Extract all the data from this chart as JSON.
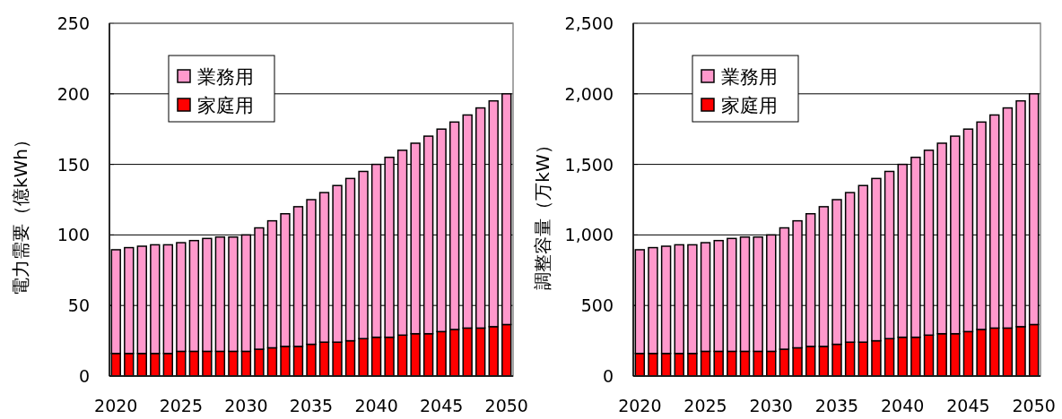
{
  "chart_data": [
    {
      "type": "bar",
      "stacked": true,
      "ylabel": "電力需要（億kWh）",
      "categories": [
        "2020",
        null,
        null,
        null,
        null,
        "2025",
        null,
        null,
        null,
        null,
        "2030",
        null,
        null,
        null,
        null,
        "2035",
        null,
        null,
        null,
        null,
        "2040",
        null,
        null,
        null,
        null,
        "2045",
        null,
        null,
        null,
        null,
        "2050"
      ],
      "series": [
        {
          "name": "家庭用",
          "color": "#ff0000",
          "values": [
            16,
            16,
            16,
            16,
            16,
            17.5,
            17.5,
            17.5,
            17.5,
            17.5,
            17.5,
            19,
            20,
            21,
            21,
            22.5,
            24,
            24,
            25,
            26.5,
            27.5,
            27.5,
            29,
            30,
            30,
            31.5,
            33,
            34,
            34,
            35,
            36.5
          ]
        },
        {
          "name": "業務用",
          "color": "#ff99cc",
          "values": [
            73.5,
            75,
            76,
            77,
            77,
            77,
            78.5,
            80,
            81,
            81,
            82.5,
            86,
            90,
            94,
            99,
            102.5,
            106,
            111,
            115,
            118.5,
            122.5,
            127.5,
            131,
            135,
            140,
            143.5,
            147,
            151,
            156,
            160,
            163.5
          ]
        }
      ],
      "ylim": [
        0,
        250
      ],
      "yticks": [
        0,
        50,
        100,
        150,
        200,
        250
      ],
      "grid": "y",
      "legend": "top left"
    },
    {
      "type": "bar",
      "stacked": true,
      "ylabel": "調整容量（万kW）",
      "categories": [
        "2020",
        null,
        null,
        null,
        null,
        "2025",
        null,
        null,
        null,
        null,
        "2030",
        null,
        null,
        null,
        null,
        "2035",
        null,
        null,
        null,
        null,
        "2040",
        null,
        null,
        null,
        null,
        "2045",
        null,
        null,
        null,
        null,
        "2050"
      ],
      "series": [
        {
          "name": "家庭用",
          "color": "#ff0000",
          "values": [
            160,
            160,
            160,
            160,
            160,
            175,
            175,
            175,
            175,
            175,
            175,
            190,
            200,
            210,
            210,
            225,
            240,
            240,
            250,
            265,
            275,
            275,
            290,
            300,
            300,
            315,
            330,
            340,
            340,
            350,
            365
          ]
        },
        {
          "name": "業務用",
          "color": "#ff99cc",
          "values": [
            735,
            750,
            760,
            770,
            770,
            770,
            785,
            800,
            810,
            810,
            825,
            860,
            900,
            940,
            990,
            1025,
            1060,
            1110,
            1150,
            1185,
            1225,
            1275,
            1310,
            1350,
            1400,
            1435,
            1470,
            1510,
            1560,
            1600,
            1635
          ]
        }
      ],
      "ylim": [
        0,
        2500
      ],
      "yticks": [
        0,
        500,
        {
          "value": 1000,
          "label": "1,000"
        },
        {
          "value": 1500,
          "label": "1,500"
        },
        {
          "value": 2000,
          "label": "2,000"
        },
        {
          "value": 2500,
          "label": "2,500"
        }
      ],
      "grid": "y",
      "legend": "top left"
    }
  ]
}
